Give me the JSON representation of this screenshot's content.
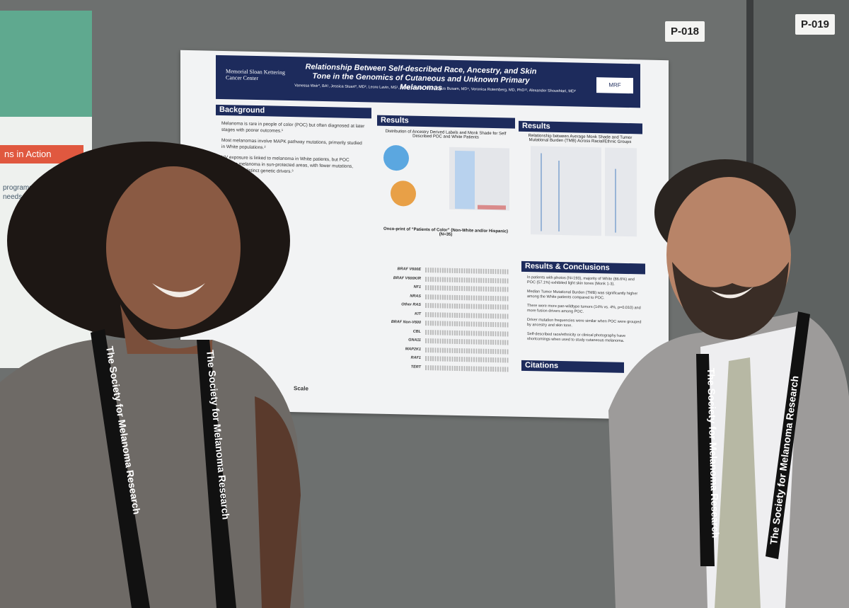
{
  "board_labels": [
    "P-018",
    "P-019"
  ],
  "left_poster": {
    "banner": "ns in Action",
    "lines": [
      "programs that can",
      "needs."
    ]
  },
  "poster": {
    "institution": "Memorial Sloan Kettering Cancer Center",
    "title": "Relationship Between Self-described Race, Ancestry, and Skin Tone in the Genomics of Cutaneous and Unknown Primary Melanomas",
    "authors": "Vanessa Weir*, BA¹, Jessica Stuart*, MD², Leore Lavin, MS¹, Walid Chatila, PhD³, Klaus Busam, MD⁴, Veronica Rotemberg, MD, PhD¹², Alexander Shoushtari, MD²",
    "logo": "MRF",
    "background": {
      "heading": "Background",
      "bullets": [
        "Melanoma is rare in people of color (POC) but often diagnosed at later stages with poorer outcomes.¹",
        "Most melanomas involve MAPK pathway mutations, primarily studied in White populations.²",
        "UV exposure is linked to melanoma in White patients, but POC develop melanoma in sun-protected areas, with fewer mutations, suggesting distinct genetic drivers.³"
      ]
    },
    "results1": {
      "heading": "Results",
      "subtitle": "Distribution of Ancestry Derived Labels and Monk Shade for Self Described POC and White Patients"
    },
    "results2": {
      "heading": "Results",
      "subtitle": "Relationship between Average Monk Shade and Tumor Mutational Burden (TMB) Across Racial/Ethnic Groups"
    },
    "oncoprint_title": "Onco-print of “Patients of Color” (Non-White and/or Hispanic) (N=35)",
    "genes": [
      "BRAF V600E",
      "BRAF V600K/R",
      "NF1",
      "NRAS",
      "Other RAS",
      "KIT",
      "BRAF Non-V600",
      "CBL",
      "GNA11",
      "MAP2K1",
      "RAF1",
      "TERT"
    ],
    "conclusions": {
      "heading": "Results & Conclusions",
      "bullets": [
        "In patients with photos (N=193), majority of White (86.6%) and POC (57.1%) exhibited light skin tones (Monk 1-3).",
        "Median Tumor Mutational Burden (TMB) was significantly higher among the White patients compared to POC.",
        "There were more pan-wildtype tumors (14% vs. 4%, p=0.010) and more fusion drivers among POC.",
        "Driver mutation frequencies were similar when POC were grouped by ancestry and skin tone.",
        "Self-described race/ethnicity or clinical photography have shortcomings when used to study cutaneous melanoma."
      ]
    },
    "citations": "Citations",
    "scale": "Scale"
  },
  "lanyard_text": "The Society for Melanoma Research"
}
